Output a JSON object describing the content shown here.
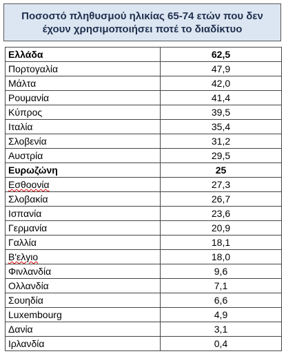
{
  "title": "Ποσοστό πληθυσμού ηλικίας 65-74 ετών που δεν έχουν χρησιμοποιήσει ποτέ το διαδίκτυο",
  "table": {
    "rows": [
      [
        "Ελλάδα",
        "62,5"
      ],
      [
        "Πορτογαλία",
        "47,9"
      ],
      [
        "Μάλτα",
        "42,0"
      ],
      [
        "Ρουμανία",
        "41,4"
      ],
      [
        "Κύπρος",
        "39,5"
      ],
      [
        "Ιταλία",
        "35,4"
      ],
      [
        "Σλοβενία",
        "31,2"
      ],
      [
        "Αυστρία",
        "29,5"
      ],
      [
        "Ευρωζώνη",
        "25"
      ],
      [
        "Εσθοονία",
        "27,3"
      ],
      [
        "Σλοβακία",
        "26,7"
      ],
      [
        "Ισπανία",
        "23,6"
      ],
      [
        "Γερμανία",
        "20,9"
      ],
      [
        "Γαλλία",
        "18,1"
      ],
      [
        "Β'ελγιο",
        "18,0"
      ],
      [
        "Φινλανδία",
        "9,6"
      ],
      [
        "Ολλανδία",
        "7,1"
      ],
      [
        "Σουηδία",
        "6,6"
      ],
      [
        "Luxembourg",
        "4,9"
      ],
      [
        "Δανία",
        "3,1"
      ],
      [
        "Ιρλανδία",
        "0,4"
      ]
    ]
  }
}
